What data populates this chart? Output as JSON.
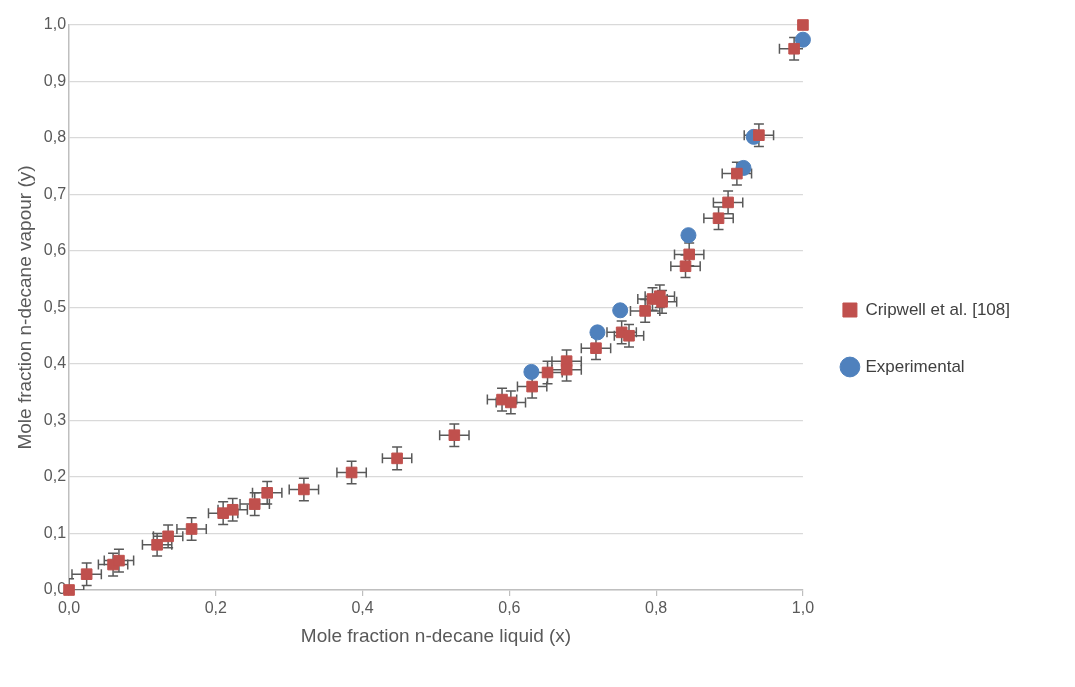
{
  "chart_data": {
    "type": "scatter",
    "xlabel": "Mole fraction n-decane liquid (x)",
    "ylabel": "Mole fraction n-decane vapour (y)",
    "xlim": [
      0,
      1
    ],
    "ylim": [
      0,
      1
    ],
    "xticks": [
      {
        "value": 0,
        "label": "0,0"
      },
      {
        "value": 0.2,
        "label": "0,2"
      },
      {
        "value": 0.4,
        "label": "0,4"
      },
      {
        "value": 0.6,
        "label": "0,6"
      },
      {
        "value": 0.8,
        "label": "0,8"
      },
      {
        "value": 1,
        "label": "1,0"
      }
    ],
    "yticks": [
      {
        "value": 0,
        "label": "0,0"
      },
      {
        "value": 0.1,
        "label": "0,1"
      },
      {
        "value": 0.2,
        "label": "0,2"
      },
      {
        "value": 0.3,
        "label": "0,3"
      },
      {
        "value": 0.4,
        "label": "0,4"
      },
      {
        "value": 0.5,
        "label": "0,5"
      },
      {
        "value": 0.6,
        "label": "0,6"
      },
      {
        "value": 0.7,
        "label": "0,7"
      },
      {
        "value": 0.8,
        "label": "0,8"
      },
      {
        "value": 0.9,
        "label": "0,9"
      },
      {
        "value": 1,
        "label": "1,0"
      }
    ],
    "grid": "y",
    "legend": "right",
    "series": [
      {
        "name": "Cripwell et al. [108]",
        "color": "#c0504d",
        "marker": "square",
        "x": [
          0,
          0.024,
          0.06,
          0.068,
          0.12,
          0.135,
          0.167,
          0.21,
          0.223,
          0.253,
          0.27,
          0.32,
          0.385,
          0.447,
          0.525,
          0.59,
          0.602,
          0.631,
          0.652,
          0.678,
          0.678,
          0.718,
          0.753,
          0.763,
          0.785,
          0.795,
          0.805,
          0.808,
          0.84,
          0.845,
          0.885,
          0.898,
          0.91,
          0.94,
          0.988,
          1.0
        ],
        "values": [
          0,
          0.028,
          0.045,
          0.052,
          0.08,
          0.095,
          0.108,
          0.136,
          0.142,
          0.152,
          0.172,
          0.178,
          0.208,
          0.233,
          0.274,
          0.337,
          0.332,
          0.36,
          0.385,
          0.405,
          0.39,
          0.428,
          0.456,
          0.45,
          0.494,
          0.515,
          0.52,
          0.51,
          0.573,
          0.594,
          0.658,
          0.686,
          0.737,
          0.805,
          0.958,
          1.0
        ],
        "errors": [
          0.02,
          0.02,
          0.02,
          0.02,
          0.02,
          0.02,
          0.02,
          0.02,
          0.02,
          0.02,
          0.02,
          0.02,
          0.02,
          0.02,
          0.02,
          0.02,
          0.02,
          0.02,
          0.02,
          0.02,
          0.02,
          0.02,
          0.02,
          0.02,
          0.02,
          0.02,
          0.02,
          0.02,
          0.02,
          0.02,
          0.02,
          0.02,
          0.02,
          0.02,
          0.02,
          null
        ],
        "xerrors": [
          0.02,
          0.02,
          0.02,
          0.02,
          0.02,
          0.02,
          0.02,
          0.02,
          0.02,
          0.02,
          0.02,
          0.02,
          0.02,
          0.02,
          0.02,
          0.02,
          0.02,
          0.02,
          0.02,
          0.02,
          0.02,
          0.02,
          0.02,
          0.02,
          0.02,
          0.02,
          0.02,
          0.02,
          0.02,
          0.02,
          0.02,
          0.02,
          0.02,
          0.02,
          0.02,
          null
        ]
      },
      {
        "name": "Experimental",
        "color": "#4f81bd",
        "marker": "circle",
        "x": [
          0.63,
          0.72,
          0.751,
          0.844,
          0.919,
          0.933,
          1.0
        ],
        "values": [
          0.386,
          0.456,
          0.495,
          0.628,
          0.747,
          0.802,
          0.974
        ]
      }
    ]
  }
}
